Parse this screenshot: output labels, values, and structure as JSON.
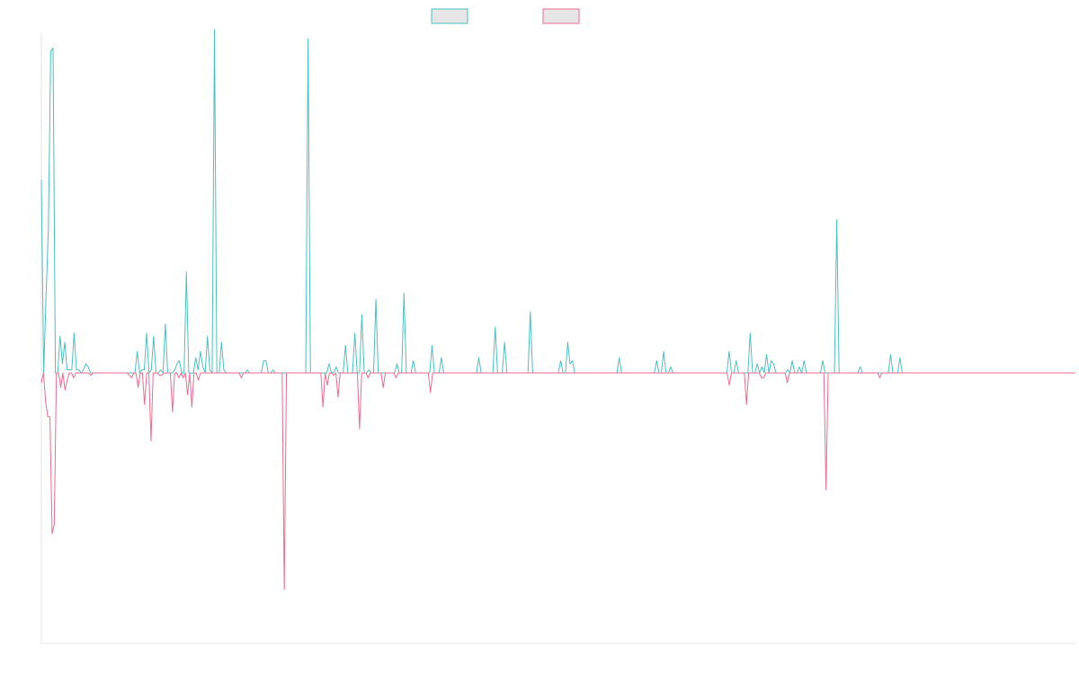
{
  "chart_data": {
    "type": "line",
    "title": "",
    "xlabel": "",
    "ylabel": "",
    "legend": {
      "placement": "top-center",
      "show_labels": false
    },
    "grid": false,
    "xlim": [
      0,
      200
    ],
    "ylim": [
      -1.0,
      1.0
    ],
    "series": [
      {
        "color": "#4bc0c0",
        "values": [
          0.63,
          0,
          0.25,
          0.47,
          1.05,
          1.06,
          0,
          0,
          0.12,
          0.03,
          0.1,
          0.01,
          0.01,
          0.01,
          0.13,
          0.01,
          0.01,
          0,
          0.01,
          0.03,
          0.02,
          0,
          0,
          0,
          0,
          0,
          0,
          0,
          0,
          0,
          0,
          0,
          0,
          0,
          0,
          0,
          0,
          0,
          0,
          0,
          0,
          0.07,
          0,
          0.01,
          0.01,
          0.13,
          0,
          0.01,
          0.12,
          0,
          0,
          0.01,
          0,
          0.16,
          0,
          0,
          0,
          0.01,
          0.03,
          0.04,
          0,
          0,
          0.33,
          0,
          0,
          0,
          0.05,
          0.01,
          0.07,
          0.02,
          0,
          0.12,
          0.01,
          0,
          1.12,
          0,
          0,
          0.1,
          0.01,
          0,
          0,
          0,
          0,
          0,
          0,
          0,
          0,
          0,
          0.01,
          0,
          0,
          0,
          0,
          0,
          0,
          0.04,
          0.04,
          0,
          0,
          0.01,
          0,
          0,
          0,
          0,
          0,
          0,
          0,
          0,
          0,
          0,
          0,
          0,
          0,
          0,
          1.09,
          0,
          0,
          0,
          0,
          0,
          0,
          0,
          0,
          0.03,
          0,
          0,
          0.02,
          0,
          0,
          0,
          0.09,
          0,
          0,
          0,
          0.13,
          0,
          0,
          0.19,
          0,
          0,
          0.01,
          0,
          0,
          0.24,
          0,
          0,
          0,
          0,
          0,
          0,
          0,
          0,
          0.03,
          0,
          0,
          0.26,
          0,
          0,
          0,
          0.04,
          0,
          0,
          0,
          0,
          0,
          0,
          0,
          0.09,
          0,
          0,
          0,
          0.05,
          0,
          0,
          0,
          0,
          0,
          0,
          0,
          0,
          0,
          0,
          0,
          0,
          0,
          0,
          0,
          0.05,
          0,
          0,
          0,
          0,
          0,
          0,
          0.15,
          0,
          0,
          0,
          0.1,
          0,
          0,
          0,
          0,
          0,
          0,
          0,
          0,
          0,
          0,
          0.2,
          0,
          0,
          0,
          0,
          0,
          0,
          0,
          0,
          0,
          0,
          0,
          0,
          0.04,
          0,
          0,
          0.1,
          0.03,
          0.04,
          0,
          0,
          0,
          0,
          0,
          0,
          0,
          0,
          0,
          0,
          0,
          0,
          0,
          0,
          0,
          0,
          0,
          0,
          0,
          0.05,
          0,
          0,
          0,
          0,
          0,
          0,
          0,
          0,
          0,
          0,
          0,
          0,
          0,
          0,
          0,
          0.04,
          0,
          0,
          0.07,
          0,
          0,
          0.02,
          0,
          0,
          0,
          0,
          0,
          0,
          0,
          0,
          0,
          0,
          0,
          0,
          0,
          0,
          0,
          0,
          0,
          0,
          0,
          0,
          0,
          0,
          0,
          0,
          0.07,
          0,
          0,
          0.04,
          0,
          0,
          0,
          0,
          0,
          0.13,
          0,
          0,
          0.03,
          0,
          0.02,
          0,
          0.06,
          0,
          0.04,
          0.03,
          0,
          0,
          0,
          0,
          0,
          0.01,
          0,
          0.04,
          0,
          0,
          0.02,
          0,
          0.04,
          0,
          0,
          0,
          0,
          0,
          0,
          0,
          0.04,
          0,
          0,
          0,
          0,
          0,
          0.5,
          0,
          0,
          0,
          0,
          0,
          0,
          0,
          0,
          0,
          0.02,
          0,
          0,
          0,
          0,
          0,
          0,
          0,
          0,
          0,
          0,
          0,
          0,
          0.06,
          0,
          0,
          0,
          0.05,
          0,
          0,
          0,
          0,
          0,
          0,
          0,
          0,
          0,
          0,
          0,
          0,
          0,
          0,
          0,
          0,
          0,
          0,
          0,
          0,
          0,
          0,
          0,
          0,
          0,
          0,
          0,
          0,
          0,
          0,
          0,
          0,
          0,
          0,
          0,
          0,
          0,
          0,
          0,
          0,
          0,
          0,
          0,
          0,
          0,
          0,
          0,
          0,
          0,
          0,
          0,
          0,
          0,
          0,
          0,
          0,
          0,
          0,
          0,
          0,
          0,
          0,
          0,
          0,
          0,
          0,
          0,
          0,
          0,
          0,
          0,
          0,
          0,
          0,
          0
        ]
      },
      {
        "color": "#f06a8e",
        "values": [
          -0.04,
          0,
          -0.12,
          -0.18,
          -0.18,
          -0.66,
          -0.62,
          0,
          0,
          -0.06,
          0,
          -0.07,
          -0.03,
          0,
          0,
          -0.02,
          0,
          0,
          0,
          0,
          0,
          0,
          0,
          -0.01,
          0,
          0,
          0,
          0,
          0,
          0,
          0,
          0,
          0,
          0,
          0,
          0,
          0,
          0,
          0,
          0,
          0,
          -0.01,
          -0.02,
          0,
          0,
          -0.06,
          0,
          0,
          -0.13,
          0,
          0,
          -0.28,
          0,
          0,
          0,
          -0.01,
          -0.01,
          0,
          0,
          0,
          0,
          -0.16,
          0,
          0,
          -0.02,
          0,
          -0.02,
          0,
          -0.09,
          0,
          -0.14,
          0,
          0,
          -0.03,
          0,
          0,
          0,
          0,
          0,
          0,
          0,
          0,
          0,
          0,
          0,
          0,
          0,
          0,
          0,
          0,
          0,
          0,
          0,
          -0.02,
          0,
          0,
          0,
          0,
          0,
          0,
          0,
          0,
          0,
          0,
          0,
          0,
          0,
          0,
          0,
          0,
          0,
          0,
          0,
          -0.89,
          0,
          0,
          0,
          0,
          0,
          0,
          0,
          0,
          0,
          0,
          0,
          0,
          0,
          0,
          0,
          0,
          0,
          -0.14,
          0,
          -0.05,
          0,
          0,
          -0.01,
          0,
          -0.1,
          0,
          0,
          0,
          0,
          0,
          0,
          0,
          0,
          0,
          -0.23,
          0,
          0,
          0,
          -0.02,
          0,
          0,
          0,
          0,
          0,
          0,
          -0.06,
          0,
          0,
          0,
          0,
          0,
          -0.02,
          0,
          0,
          0,
          0,
          0,
          0,
          0,
          0,
          0,
          0,
          0,
          0,
          0,
          0,
          0,
          -0.08,
          0,
          0,
          0,
          0,
          0,
          0,
          0,
          0,
          0,
          0,
          0,
          0,
          0,
          0,
          0,
          0,
          0,
          0,
          0,
          0,
          0,
          0,
          0,
          0,
          0,
          0,
          0,
          0,
          0,
          0,
          0,
          0,
          0,
          0,
          0,
          0,
          0,
          0,
          0,
          0,
          0,
          0,
          0,
          0,
          0,
          0,
          0,
          0,
          0,
          0,
          0,
          0,
          0,
          0,
          0,
          0,
          0,
          0,
          0,
          0,
          0,
          0,
          0,
          0,
          0,
          0,
          0,
          0,
          0,
          0,
          0,
          0,
          0,
          0,
          0,
          0,
          0,
          0,
          0,
          0,
          0,
          0,
          0,
          0,
          0,
          0,
          0,
          0,
          0,
          0,
          0,
          0,
          0,
          0,
          0,
          0,
          0,
          0,
          0,
          0,
          0,
          0,
          0,
          0,
          0,
          0,
          0,
          0,
          0,
          0,
          0,
          0,
          0,
          0,
          0,
          0,
          0,
          0,
          0,
          0,
          0,
          0,
          0,
          0,
          0,
          0,
          0,
          0,
          0,
          0,
          0,
          0,
          0,
          0,
          0,
          0,
          0,
          0,
          -0.05,
          0,
          0,
          0,
          0,
          0,
          0,
          0,
          -0.13,
          0,
          0,
          0,
          0,
          0,
          0,
          -0.02,
          -0.02,
          0,
          0,
          0,
          0,
          0,
          0,
          0,
          0,
          0,
          0,
          -0.04,
          0,
          0,
          0,
          0,
          0,
          0,
          0,
          0,
          0,
          0,
          0,
          0,
          0,
          0,
          0,
          0,
          0,
          -0.48,
          0,
          0,
          0,
          0,
          0,
          0,
          0,
          0,
          0,
          0,
          0,
          0,
          0,
          0,
          0,
          0,
          0,
          0,
          0,
          0,
          0,
          0,
          0,
          0,
          -0.02,
          0,
          0,
          0,
          0,
          0,
          0,
          0,
          0,
          0,
          0,
          0,
          0,
          0,
          0,
          0,
          0,
          0,
          0,
          0,
          0,
          0,
          0,
          0,
          0,
          0,
          0,
          0,
          0,
          0,
          0,
          0,
          0,
          0,
          0,
          0,
          0,
          0,
          0,
          0,
          0,
          0,
          0,
          0,
          0,
          0,
          0,
          0,
          0,
          0,
          0,
          0,
          0,
          0,
          0,
          0,
          0,
          0,
          0,
          0,
          0,
          0,
          0,
          0,
          0,
          0,
          0,
          0,
          0,
          0,
          0,
          0,
          0,
          0,
          0,
          0,
          0,
          0,
          0,
          0,
          0,
          0,
          0,
          0,
          0,
          0,
          0,
          0,
          0,
          0,
          0,
          0
        ]
      }
    ]
  }
}
